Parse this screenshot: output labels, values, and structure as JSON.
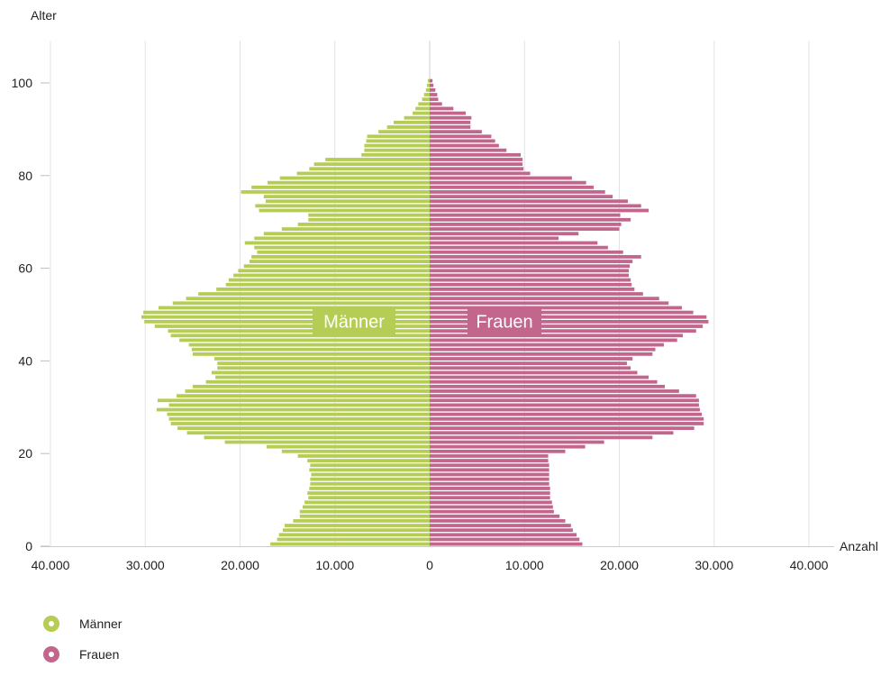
{
  "chart_data": {
    "type": "bar",
    "orientation": "horizontal",
    "layout": "population-pyramid",
    "title": "",
    "ylabel": "Alter",
    "xlabel": "Anzahl",
    "xlim": [
      -40000,
      40000
    ],
    "ylim": [
      0,
      100
    ],
    "x_ticks": [
      -40000,
      -30000,
      -20000,
      -10000,
      0,
      10000,
      20000,
      30000,
      40000
    ],
    "x_tick_labels": [
      "40.000",
      "30.000",
      "20.000",
      "10.000",
      "0",
      "10.000",
      "20.000",
      "30.000",
      "40.000"
    ],
    "y_ticks": [
      0,
      20,
      40,
      60,
      80,
      100
    ],
    "y_tick_labels": [
      "0",
      "20",
      "40",
      "60",
      "80",
      "100"
    ],
    "grid": "vertical",
    "legend_position": "bottom-left",
    "ages": [
      0,
      1,
      2,
      3,
      4,
      5,
      6,
      7,
      8,
      9,
      10,
      11,
      12,
      13,
      14,
      15,
      16,
      17,
      18,
      19,
      20,
      21,
      22,
      23,
      24,
      25,
      26,
      27,
      28,
      29,
      30,
      31,
      32,
      33,
      34,
      35,
      36,
      37,
      38,
      39,
      40,
      41,
      42,
      43,
      44,
      45,
      46,
      47,
      48,
      49,
      50,
      51,
      52,
      53,
      54,
      55,
      56,
      57,
      58,
      59,
      60,
      61,
      62,
      63,
      64,
      65,
      66,
      67,
      68,
      69,
      70,
      71,
      72,
      73,
      74,
      75,
      76,
      77,
      78,
      79,
      80,
      81,
      82,
      83,
      84,
      85,
      86,
      87,
      88,
      89,
      90,
      91,
      92,
      93,
      94,
      95,
      96,
      97,
      98,
      99,
      100
    ],
    "series": [
      {
        "name": "Männer",
        "color": "#b5cd54",
        "values": [
          16800,
          16100,
          15900,
          15500,
          15300,
          14400,
          13700,
          13700,
          13400,
          13200,
          12800,
          12900,
          12700,
          12600,
          12600,
          12500,
          12700,
          12600,
          12900,
          13900,
          15600,
          17200,
          21600,
          23800,
          25600,
          26600,
          27300,
          27500,
          27700,
          28800,
          27500,
          28700,
          26700,
          25800,
          25000,
          23600,
          22600,
          23000,
          22400,
          22400,
          22700,
          25000,
          25100,
          25400,
          26400,
          27300,
          27600,
          29000,
          30100,
          30400,
          30200,
          28600,
          27100,
          25700,
          24400,
          22500,
          21500,
          21200,
          20700,
          20200,
          19600,
          19000,
          18800,
          18200,
          18500,
          19500,
          18500,
          17500,
          15600,
          13900,
          12800,
          12800,
          18000,
          18400,
          17300,
          17500,
          19900,
          18800,
          17100,
          15800,
          14000,
          12700,
          12200,
          11000,
          7200,
          6900,
          6900,
          6700,
          6600,
          5400,
          4500,
          3800,
          2700,
          1800,
          1500,
          1200,
          800,
          600,
          400,
          300,
          200
        ],
        "label": "Männer"
      },
      {
        "name": "Frauen",
        "color": "#c2668e",
        "values": [
          16100,
          15800,
          15500,
          15100,
          14900,
          14300,
          13700,
          13100,
          13000,
          12900,
          12700,
          12700,
          12700,
          12600,
          12600,
          12600,
          12600,
          12600,
          12500,
          12500,
          14300,
          16400,
          18400,
          23500,
          25700,
          27900,
          28900,
          28900,
          28700,
          28500,
          28400,
          28400,
          28100,
          26300,
          24800,
          24000,
          23100,
          21900,
          21200,
          20800,
          21400,
          23500,
          23800,
          24700,
          26100,
          26700,
          28100,
          28800,
          29400,
          29200,
          27800,
          26600,
          25200,
          24200,
          22500,
          21600,
          21300,
          21200,
          21000,
          21000,
          21100,
          21400,
          22300,
          20400,
          18800,
          17700,
          13600,
          15700,
          20000,
          20200,
          21200,
          20100,
          23100,
          22300,
          20900,
          19300,
          18500,
          17300,
          16500,
          15000,
          10600,
          9900,
          9800,
          9800,
          9600,
          8100,
          7300,
          6900,
          6500,
          5500,
          4300,
          4300,
          4400,
          3800,
          2500,
          1300,
          900,
          800,
          600,
          400,
          300
        ],
        "label": "Frauen"
      }
    ]
  },
  "legend": {
    "items": [
      {
        "label": "Männer",
        "color": "#b5cd54"
      },
      {
        "label": "Frauen",
        "color": "#c2668e"
      }
    ]
  }
}
